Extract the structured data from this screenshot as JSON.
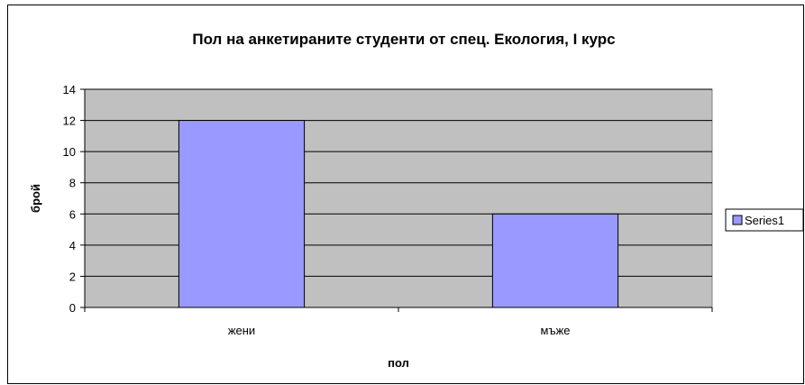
{
  "chart_data": {
    "type": "bar",
    "title": "Пол на анкетираните студенти от спец. Екология, I курс",
    "xlabel": "пол",
    "ylabel": "брой",
    "categories": [
      "жени",
      "мъже"
    ],
    "series": [
      {
        "name": "Series1",
        "values": [
          12,
          6
        ]
      }
    ],
    "ylim": [
      0,
      14
    ],
    "yticks": [
      0,
      2,
      4,
      6,
      8,
      10,
      12,
      14
    ],
    "grid": true,
    "legend_position": "right",
    "colors": {
      "plot_background": "#c0c0c0",
      "bar_fill": "#9999ff",
      "bar_stroke": "#000000",
      "gridline": "#000000"
    }
  }
}
